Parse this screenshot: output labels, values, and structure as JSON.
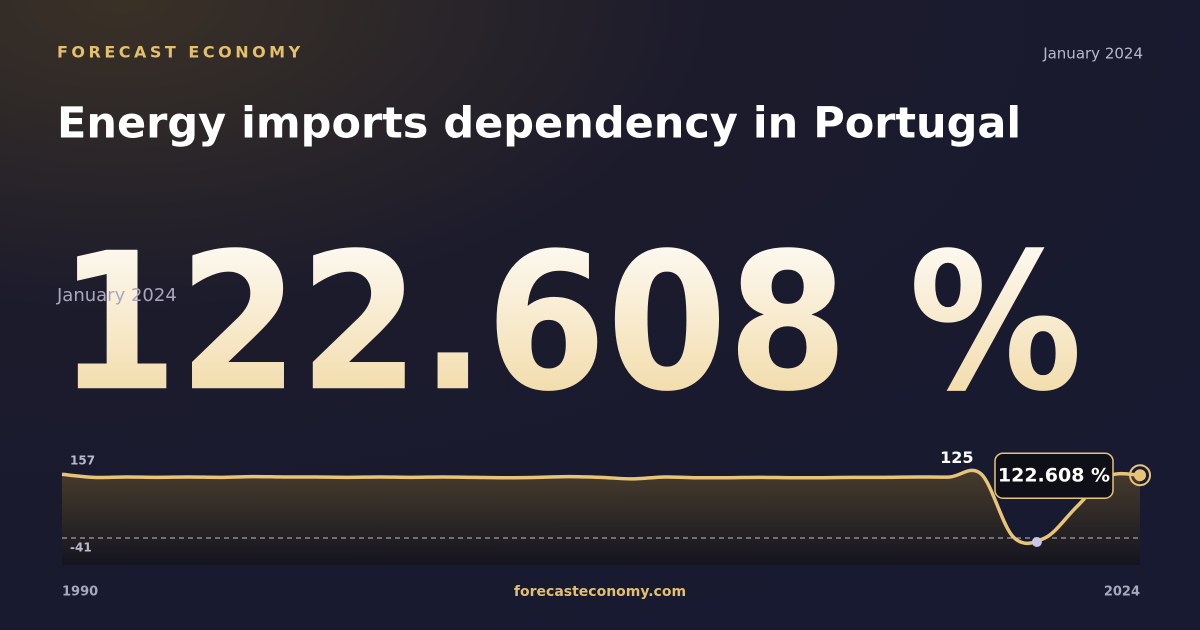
{
  "brand": "FORECAST ECONOMY",
  "date": "January 2024",
  "title": "Energy imports dependency in Portugal",
  "footer": "forecasteconomy.com",
  "chart_data": {
    "type": "line",
    "x": [
      1990,
      1991,
      1992,
      1993,
      1994,
      1995,
      1996,
      1997,
      1998,
      1999,
      2000,
      2001,
      2002,
      2003,
      2004,
      2005,
      2006,
      2007,
      2008,
      2009,
      2010,
      2011,
      2012,
      2013,
      2014,
      2015,
      2016,
      2017,
      2018,
      2019,
      2020,
      2021,
      2022,
      2023,
      2024
    ],
    "values": [
      125,
      117,
      118,
      117,
      118,
      117,
      119,
      118,
      118,
      117,
      118,
      117,
      118,
      117,
      116,
      117,
      119,
      117,
      113,
      118,
      116,
      116,
      117,
      116,
      116,
      117,
      117,
      118,
      118,
      125,
      -38,
      -41,
      40,
      120,
      122.608
    ],
    "value_labels": [
      null,
      null,
      null,
      null,
      null,
      null,
      null,
      null,
      null,
      null,
      null,
      null,
      null,
      null,
      null,
      null,
      null,
      null,
      null,
      null,
      null,
      null,
      null,
      null,
      null,
      null,
      null,
      null,
      null,
      "125",
      null,
      null,
      null,
      null,
      "122.608 %"
    ],
    "color": "#e8c478",
    "xlim": [
      1990,
      2024
    ],
    "xticks": [
      1990,
      2024
    ],
    "ylim": [
      -41,
      157
    ],
    "yticks": [
      -41,
      157
    ]
  }
}
